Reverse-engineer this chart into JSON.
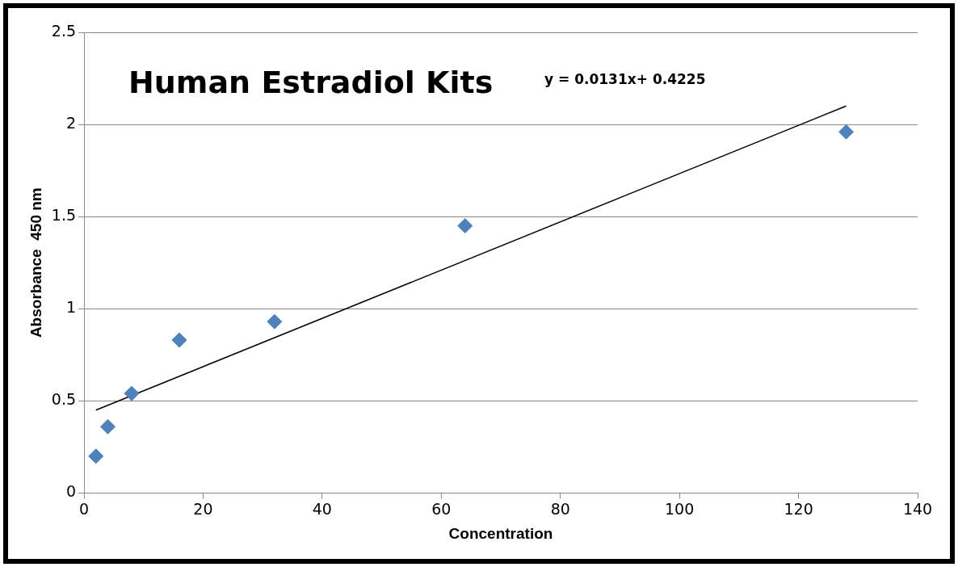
{
  "chart_data": {
    "type": "scatter",
    "title": "Human Estradiol Kits",
    "xlabel": "Concentration",
    "ylabel": "Absorbance  450 nm",
    "annotations": [
      "y = 0.0131x+ 0.4225"
    ],
    "marker": "diamond",
    "series": [
      {
        "color": "#4f81bd",
        "x": [
          2,
          4,
          8,
          16,
          32,
          64,
          128
        ],
        "values": [
          0.2,
          0.36,
          0.54,
          0.83,
          0.93,
          1.45,
          1.96
        ]
      },
      {
        "type": "line",
        "color": "#000000",
        "x": [
          2,
          128
        ],
        "values": [
          0.45,
          2.1
        ],
        "marker": "none"
      }
    ],
    "xlim": [
      0,
      140
    ],
    "xticks": [
      0,
      20,
      40,
      60,
      80,
      100,
      120,
      140
    ],
    "ylim": [
      0,
      2.5
    ],
    "yticks": [
      0,
      0.5,
      1,
      1.5,
      2,
      2.5
    ],
    "grid": "y",
    "legend": false
  }
}
